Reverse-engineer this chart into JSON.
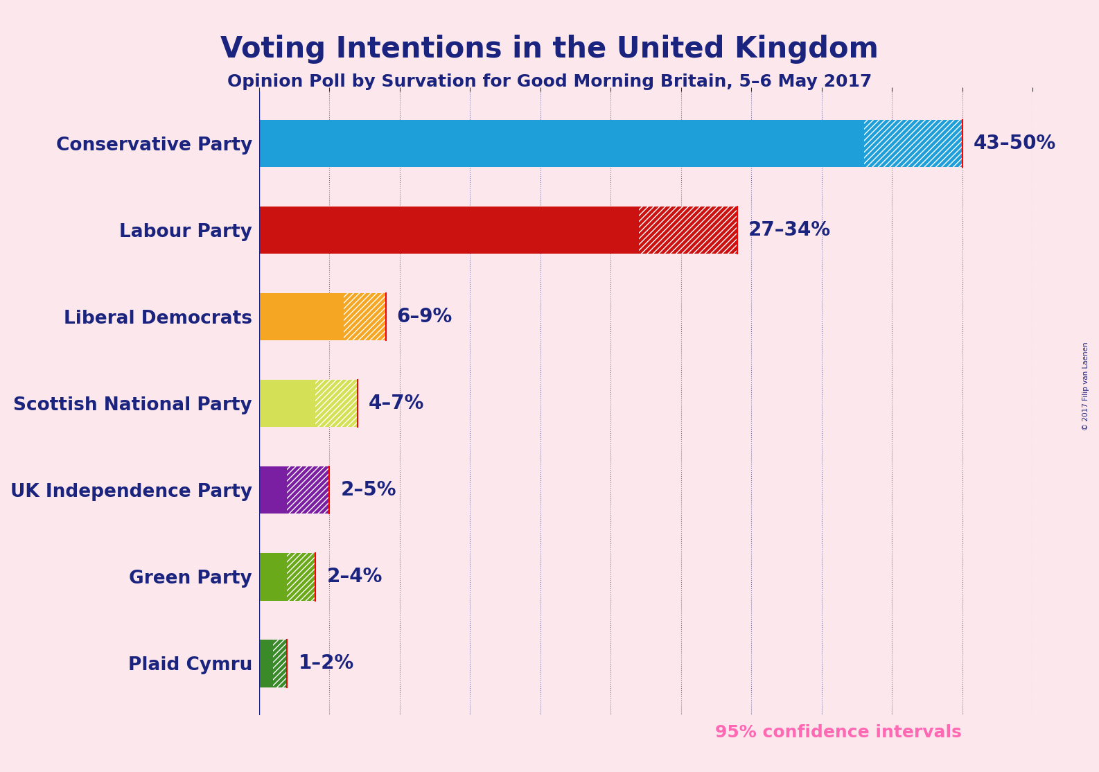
{
  "title": "Voting Intentions in the United Kingdom",
  "subtitle": "Opinion Poll by Survation for Good Morning Britain, 5–6 May 2017",
  "copyright": "© 2017 Filip van Laenen",
  "background_color": "#fce8ec",
  "title_color": "#1a237e",
  "subtitle_color": "#1a237e",
  "parties": [
    "Conservative Party",
    "Labour Party",
    "Liberal Democrats",
    "Scottish National Party",
    "UK Independence Party",
    "Green Party",
    "Plaid Cymru"
  ],
  "low_values": [
    43,
    27,
    6,
    4,
    2,
    2,
    1
  ],
  "high_values": [
    50,
    34,
    9,
    7,
    5,
    4,
    2
  ],
  "labels": [
    "43–50%",
    "27–34%",
    "6–9%",
    "4–7%",
    "2–5%",
    "2–4%",
    "1–2%"
  ],
  "colors": [
    "#1e9fda",
    "#cc1111",
    "#f5a623",
    "#d4e157",
    "#7b1fa2",
    "#6aaa1a",
    "#3a8a2a"
  ],
  "xlim": [
    0,
    55
  ],
  "label_color": "#1a237e",
  "confidence_text": "95% confidence intervals",
  "confidence_color": "#ff69b4"
}
